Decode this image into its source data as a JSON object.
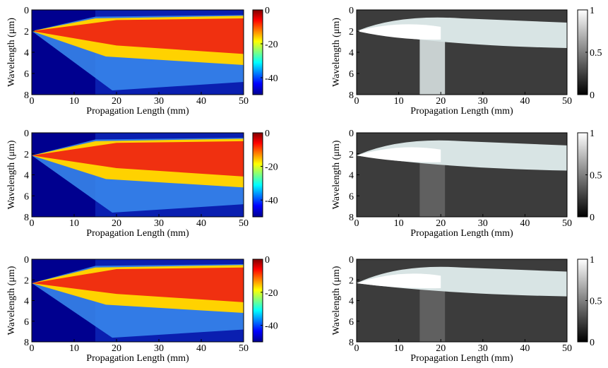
{
  "chart_data": [
    {
      "type": "heatmap",
      "colormap": "jet",
      "xlabel": "Propagation Length (mm)",
      "ylabel": "Wavelength (μm)",
      "xlim": [
        0,
        50
      ],
      "xticks": [
        0,
        10,
        20,
        30,
        40,
        50
      ],
      "ylim": [
        0,
        8
      ],
      "yreverse": true,
      "yticks": [
        0,
        2,
        4,
        6,
        8
      ],
      "colorbar": {
        "lim": [
          -50,
          0
        ],
        "ticks": [
          0,
          -20,
          -40
        ]
      }
    },
    {
      "type": "heatmap",
      "colormap": "gray",
      "xlabel": "Propagation Length (mm)",
      "ylabel": "Wavelength (μm)",
      "xlim": [
        0,
        50
      ],
      "xticks": [
        0,
        10,
        20,
        30,
        40,
        50
      ],
      "ylim": [
        0,
        8
      ],
      "yreverse": true,
      "yticks": [
        0,
        2,
        4,
        6,
        8
      ],
      "colorbar": {
        "lim": [
          0,
          1
        ],
        "ticks": [
          1,
          0.5,
          0
        ]
      }
    },
    {
      "type": "heatmap",
      "colormap": "jet",
      "xlabel": "Propagation Length (mm)",
      "ylabel": "Wavelength (μm)",
      "xlim": [
        0,
        50
      ],
      "xticks": [
        0,
        10,
        20,
        30,
        40,
        50
      ],
      "ylim": [
        0,
        8
      ],
      "yreverse": true,
      "yticks": [
        0,
        2,
        4,
        6,
        8
      ],
      "colorbar": {
        "lim": [
          -50,
          0
        ],
        "ticks": [
          0,
          -20,
          -40
        ]
      }
    },
    {
      "type": "heatmap",
      "colormap": "gray",
      "xlabel": "Propagation Length (mm)",
      "ylabel": "Wavelength (μm)",
      "xlim": [
        0,
        50
      ],
      "xticks": [
        0,
        10,
        20,
        30,
        40,
        50
      ],
      "ylim": [
        0,
        8
      ],
      "yreverse": true,
      "yticks": [
        0,
        2,
        4,
        6,
        8
      ],
      "colorbar": {
        "lim": [
          0,
          1
        ],
        "ticks": [
          1,
          0.5,
          0
        ]
      }
    },
    {
      "type": "heatmap",
      "colormap": "jet",
      "xlabel": "Propagation Length (mm)",
      "ylabel": "Wavelength (μm)",
      "xlim": [
        0,
        50
      ],
      "xticks": [
        0,
        10,
        20,
        30,
        40,
        50
      ],
      "ylim": [
        0,
        8
      ],
      "yreverse": true,
      "yticks": [
        0,
        2,
        4,
        6,
        8
      ],
      "colorbar": {
        "lim": [
          -50,
          0
        ],
        "ticks": [
          0,
          -20,
          -40
        ]
      }
    },
    {
      "type": "heatmap",
      "colormap": "gray",
      "xlabel": "Propagation Length (mm)",
      "ylabel": "Wavelength (μm)",
      "xlim": [
        0,
        50
      ],
      "xticks": [
        0,
        10,
        20,
        30,
        40,
        50
      ],
      "ylim": [
        0,
        8
      ],
      "yreverse": true,
      "yticks": [
        0,
        2,
        4,
        6,
        8
      ],
      "colorbar": {
        "lim": [
          0,
          1
        ],
        "ticks": [
          1,
          0.5,
          0
        ]
      }
    }
  ]
}
